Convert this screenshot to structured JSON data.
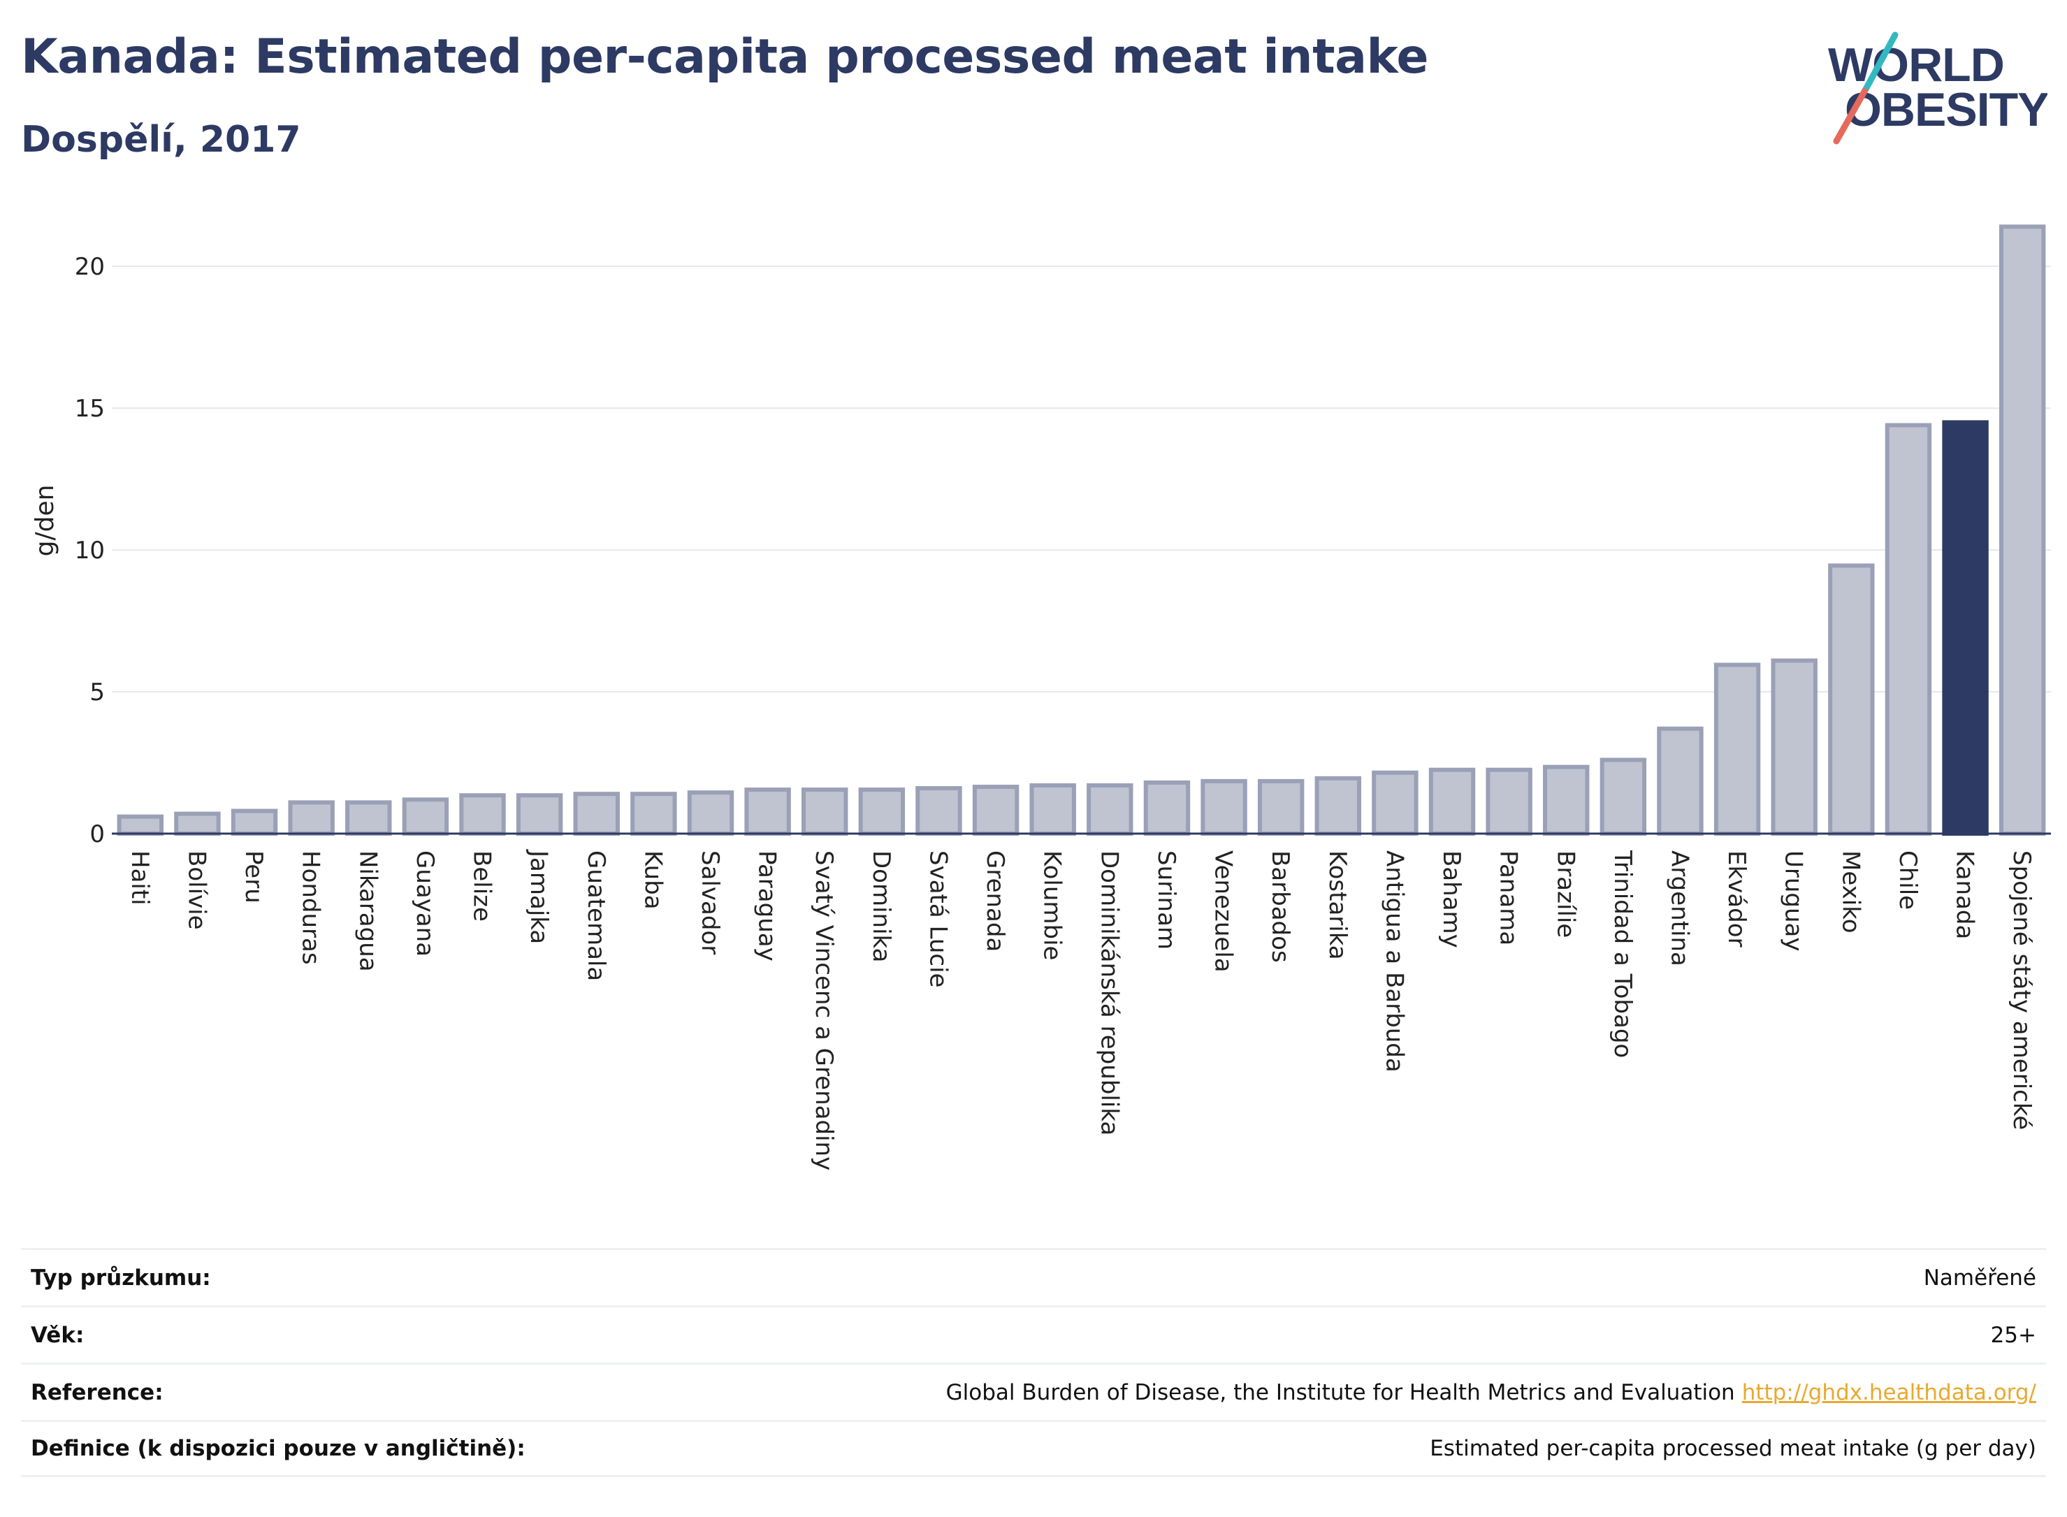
{
  "title": "Kanada: Estimated per-capita processed meat intake",
  "subtitle": "Dospělí, 2017",
  "logo": {
    "line1": "WORLD",
    "line2": "OBESITY"
  },
  "colors": {
    "bar_default": "#c0c4d1",
    "bar_stroke": "#9aa0b6",
    "bar_highlight": "#2d3a63",
    "title": "#2d3a63",
    "link": "#e8a92f"
  },
  "chart_data": {
    "type": "bar",
    "ylabel": "g/den",
    "ylim": [
      0,
      22
    ],
    "yticks": [
      0,
      5,
      10,
      15,
      20
    ],
    "grid": true,
    "highlight": "Kanada",
    "categories": [
      "Haiti",
      "Bolívie",
      "Peru",
      "Honduras",
      "Nikaragua",
      "Guayana",
      "Belize",
      "Jamajka",
      "Guatemala",
      "Kuba",
      "Salvador",
      "Paraguay",
      "Svatý Vincenc a Grenadiny",
      "Dominika",
      "Svatá Lucie",
      "Grenada",
      "Kolumbie",
      "Dominikánská republika",
      "Surinam",
      "Venezuela",
      "Barbados",
      "Kostarika",
      "Antigua a Barbuda",
      "Bahamy",
      "Panama",
      "Brazílie",
      "Trinidad a Tobago",
      "Argentina",
      "Ekvádor",
      "Uruguay",
      "Mexiko",
      "Chile",
      "Kanada",
      "Spojené státy americké"
    ],
    "values": [
      0.6,
      0.7,
      0.8,
      1.1,
      1.1,
      1.2,
      1.35,
      1.35,
      1.4,
      1.4,
      1.45,
      1.55,
      1.55,
      1.55,
      1.6,
      1.65,
      1.7,
      1.7,
      1.8,
      1.85,
      1.85,
      1.95,
      2.15,
      2.25,
      2.25,
      2.35,
      2.6,
      3.7,
      5.95,
      6.1,
      9.45,
      14.4,
      14.5,
      21.4
    ]
  },
  "info": [
    {
      "label": "Typ průzkumu:",
      "value": "Naměřené"
    },
    {
      "label": "Věk:",
      "value": "25+"
    },
    {
      "label": "Reference:",
      "value": "Global Burden of Disease, the Institute for Health Metrics and Evaluation",
      "link": "http://ghdx.healthdata.org/"
    },
    {
      "label": "Definice (k dispozici pouze v angličtině):",
      "value": "Estimated per-capita processed meat intake (g per day)"
    }
  ]
}
